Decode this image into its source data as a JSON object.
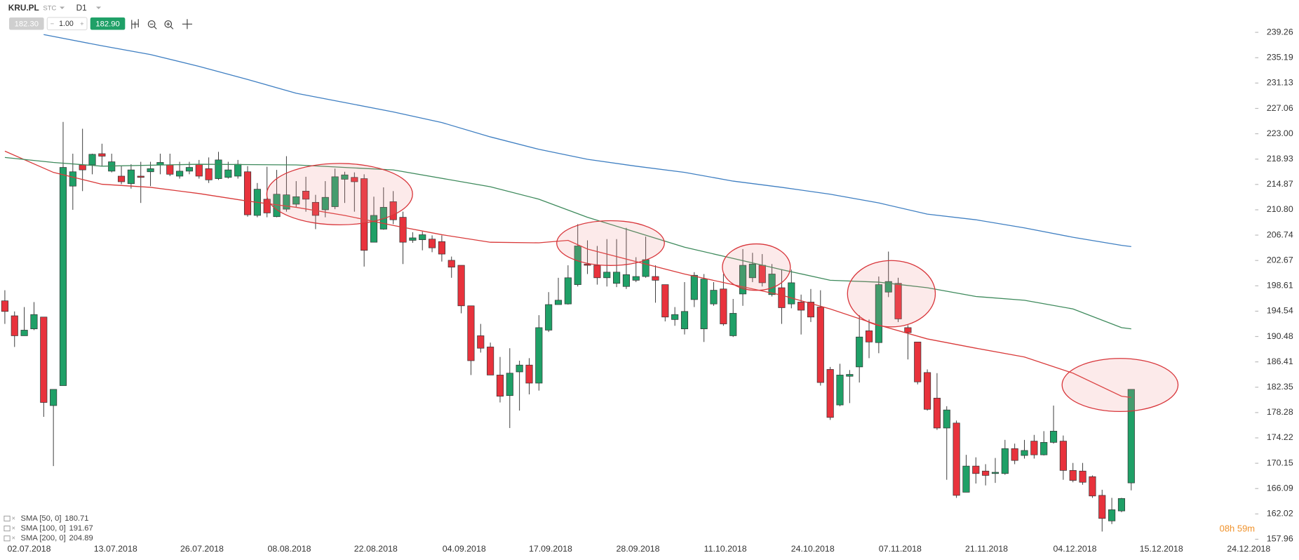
{
  "header": {
    "symbol": "KRU.PL",
    "market": "STC",
    "interval": "D1",
    "bid": "182.30",
    "quantity": "1.00",
    "ask": "182.90"
  },
  "countdown": "08h 59m",
  "chart_data": {
    "type": "candlestick",
    "xlim": [
      -0.5,
      128.5
    ],
    "xticks": [
      {
        "value": 2.5,
        "label": "02.07.2018"
      },
      {
        "value": 11.4,
        "label": "13.07.2018"
      },
      {
        "value": 20.3,
        "label": "26.07.2018"
      },
      {
        "value": 29.3,
        "label": "08.08.2018"
      },
      {
        "value": 38.2,
        "label": "22.08.2018"
      },
      {
        "value": 47.3,
        "label": "04.09.2018"
      },
      {
        "value": 56.2,
        "label": "17.09.2018"
      },
      {
        "value": 65.2,
        "label": "28.09.2018"
      },
      {
        "value": 74.2,
        "label": "11.10.2018"
      },
      {
        "value": 83.2,
        "label": "24.10.2018"
      },
      {
        "value": 92.2,
        "label": "07.11.2018"
      },
      {
        "value": 101.1,
        "label": "21.11.2018"
      },
      {
        "value": 110.2,
        "label": "04.12.2018"
      },
      {
        "value": 119.1,
        "label": "15.12.2018"
      },
      {
        "value": 128.1,
        "label": "24.12.2018"
      }
    ],
    "ylim": [
      157.96,
      239.26
    ],
    "yticks": [
      239.26,
      235.19,
      231.13,
      227.06,
      {
        "value": 223,
        "label": "223.00"
      },
      218.93,
      214.87,
      {
        "value": 210.8,
        "label": "210.80"
      },
      206.74,
      202.67,
      198.61,
      194.54,
      190.48,
      186.41,
      182.35,
      178.28,
      174.22,
      170.15,
      166.09,
      162.02,
      157.96
    ],
    "up_color": "#1fa067",
    "down_color": "#e8323c",
    "open": [
      196.2,
      193.8,
      190.6,
      191.7,
      193.6,
      179.4,
      182.6,
      214.6,
      218.0,
      218.0,
      219.8,
      217.0,
      216.2,
      215.0,
      216.2,
      216.9,
      218.0,
      218.0,
      216.2,
      217.0,
      218.1,
      217.4,
      215.8,
      216.0,
      216.2,
      216.9,
      209.9,
      212.5,
      209.7,
      210.9,
      211.7,
      213.8,
      212.0,
      210.8,
      211.3,
      215.7,
      216.0,
      215.8,
      205.6,
      207.7,
      212.1,
      209.6,
      205.9,
      206.0,
      206.1,
      205.7,
      202.7,
      201.9,
      195.4,
      190.6,
      188.8,
      184.3,
      181.0,
      184.8,
      185.9,
      183.0,
      191.5,
      195.6,
      195.7,
      198.8,
      202.1,
      201.9,
      199.9,
      199.0,
      198.5,
      199.5,
      200.1,
      200.1,
      198.8,
      193.2,
      191.7,
      196.4,
      191.7,
      195.7,
      198.1,
      190.6,
      197.3,
      199.9,
      201.9,
      197.2,
      198.3,
      195.7,
      196.0,
      196.0,
      195.2,
      185.2,
      179.5,
      184.1,
      185.6,
      191.4,
      189.5,
      197.6,
      199.0,
      191.9,
      189.6,
      184.7,
      180.6,
      175.8,
      176.6,
      165.5,
      169.7,
      168.9,
      168.5,
      168.5,
      172.5,
      171.4,
      173.7,
      171.5,
      173.5,
      173.7,
      169.0,
      168.9,
      168.0,
      165.0,
      160.9,
      162.5,
      167.0
    ],
    "high": [
      197.9,
      194.5,
      195.2,
      196.0,
      193.6,
      182.0,
      224.9,
      219.8,
      223.8,
      219.8,
      221.4,
      219.8,
      217.8,
      218.1,
      218.5,
      218.5,
      219.8,
      219.8,
      218.5,
      218.5,
      218.8,
      219.2,
      220.1,
      218.5,
      218.8,
      217.8,
      215.1,
      217.7,
      217.2,
      219.4,
      215.4,
      216.1,
      213.2,
      215.4,
      217.4,
      216.9,
      216.8,
      216.5,
      212.9,
      214.4,
      213.8,
      210.5,
      207.2,
      207.3,
      206.7,
      206.7,
      203.3,
      201.9,
      195.4,
      192.5,
      189.5,
      187.2,
      188.6,
      186.6,
      187.0,
      193.9,
      197.6,
      199.9,
      201.9,
      208.5,
      205.9,
      205.0,
      206.1,
      206.1,
      207.9,
      203.2,
      206.5,
      201.9,
      198.8,
      195.2,
      199.2,
      200.8,
      200.5,
      199.2,
      200.5,
      196.5,
      204.5,
      203.9,
      203.7,
      202.1,
      201.2,
      201.2,
      197.2,
      198.1,
      197.9,
      185.6,
      186.1,
      185.1,
      193.9,
      193.2,
      200.1,
      204.1,
      199.9,
      192.3,
      189.6,
      185.2,
      184.6,
      179.3,
      177.0,
      171.5,
      171.1,
      170.0,
      171.0,
      173.9,
      173.3,
      173.9,
      174.7,
      175.3,
      179.4,
      174.6,
      170.2,
      170.2,
      168.2,
      165.9,
      164.6,
      164.6,
      182.0
    ],
    "low": [
      192.5,
      188.8,
      190.6,
      191.5,
      177.6,
      169.7,
      182.6,
      210.8,
      213.8,
      216.5,
      217.8,
      216.8,
      214.9,
      214.2,
      211.9,
      214.6,
      216.5,
      216.2,
      215.8,
      216.5,
      215.8,
      215.1,
      215.6,
      215.8,
      215.8,
      209.7,
      209.6,
      209.6,
      209.6,
      210.5,
      211.2,
      210.5,
      207.7,
      209.6,
      210.9,
      211.9,
      210.5,
      201.7,
      205.6,
      207.6,
      208.5,
      202.1,
      205.5,
      204.3,
      204.0,
      202.5,
      199.9,
      194.2,
      184.3,
      187.9,
      184.3,
      179.9,
      175.8,
      178.6,
      181.2,
      181.8,
      191.2,
      195.6,
      195.6,
      198.5,
      200.5,
      198.8,
      198.5,
      198.4,
      198.1,
      199.2,
      199.9,
      195.9,
      192.9,
      192.2,
      190.8,
      195.2,
      189.6,
      195.4,
      192.2,
      190.4,
      195.4,
      199.2,
      198.5,
      196.9,
      192.5,
      195.0,
      190.8,
      192.8,
      182.6,
      177.1,
      179.3,
      179.8,
      183.1,
      187.0,
      187.8,
      196.8,
      192.8,
      186.8,
      182.8,
      178.6,
      175.5,
      167.5,
      164.6,
      165.5,
      166.9,
      166.6,
      167.0,
      168.3,
      170.0,
      170.9,
      170.9,
      171.4,
      173.3,
      167.5,
      167.1,
      166.7,
      164.6,
      159.2,
      160.4,
      162.3,
      165.8
    ],
    "close": [
      194.5,
      190.6,
      191.5,
      194.0,
      179.9,
      182.0,
      217.6,
      216.9,
      217.2,
      219.7,
      219.4,
      218.5,
      215.3,
      217.2,
      216.0,
      217.4,
      218.4,
      216.5,
      217.0,
      217.6,
      216.2,
      215.6,
      218.8,
      217.2,
      218.1,
      210.0,
      214.1,
      210.3,
      213.3,
      213.2,
      212.9,
      212.5,
      209.9,
      212.8,
      216.1,
      216.4,
      215.3,
      204.3,
      209.9,
      211.2,
      209.2,
      205.6,
      206.3,
      206.8,
      204.7,
      203.7,
      201.6,
      195.4,
      186.6,
      188.6,
      184.3,
      180.9,
      184.6,
      185.9,
      183.0,
      191.9,
      195.6,
      196.3,
      199.9,
      205.0,
      201.9,
      199.9,
      200.8,
      200.8,
      200.4,
      200.1,
      202.8,
      199.5,
      193.6,
      194.0,
      194.5,
      200.3,
      199.7,
      197.9,
      192.5,
      194.2,
      201.9,
      202.1,
      199.1,
      200.5,
      195.1,
      199.1,
      194.7,
      193.6,
      183.1,
      177.5,
      184.3,
      184.4,
      190.4,
      189.6,
      198.8,
      199.3,
      193.3,
      191.1,
      183.2,
      178.8,
      175.8,
      178.7,
      165.0,
      169.7,
      168.5,
      168.2,
      168.7,
      172.5,
      170.6,
      172.2,
      171.5,
      173.5,
      175.3,
      169.0,
      167.4,
      167.1,
      164.9,
      161.3,
      162.7,
      164.5,
      182.0
    ],
    "series": [
      {
        "name": "SMA [50, 0]",
        "last_value": 180.71,
        "color": "#d93a3a",
        "x": [
          0,
          5,
          10,
          15,
          20,
          25,
          30,
          35,
          40,
          45,
          50,
          55,
          58,
          60,
          65,
          70,
          75,
          80,
          85,
          90,
          95,
          100,
          105,
          110,
          115,
          116
        ],
        "values": [
          220.2,
          216.8,
          214.9,
          214.4,
          213.4,
          212.2,
          211.2,
          209.9,
          208.3,
          206.8,
          205.6,
          205.5,
          205.9,
          204.5,
          202.5,
          200.5,
          198.8,
          197.1,
          194.9,
          192.3,
          190.1,
          188.6,
          187.2,
          184.6,
          180.9,
          180.7
        ]
      },
      {
        "name": "SMA [100, 0]",
        "last_value": 191.67,
        "color": "#3e8a5c",
        "x": [
          0,
          5,
          10,
          20,
          30,
          40,
          50,
          55,
          60,
          65,
          70,
          75,
          80,
          85,
          90,
          95,
          100,
          105,
          110,
          115,
          116
        ],
        "values": [
          219.2,
          218.4,
          217.8,
          218.1,
          218.0,
          217.2,
          214.5,
          212.5,
          209.6,
          207.2,
          204.8,
          203.0,
          201.2,
          199.5,
          199.2,
          198.3,
          196.9,
          196.3,
          194.9,
          191.9,
          191.7
        ]
      },
      {
        "name": "SMA [200, 0]",
        "last_value": 204.89,
        "color": "#3f7fc2",
        "x": [
          4,
          10,
          15,
          20,
          25,
          30,
          35,
          40,
          45,
          50,
          55,
          60,
          65,
          70,
          75,
          80,
          85,
          90,
          95,
          100,
          105,
          110,
          115,
          116
        ],
        "values": [
          238.9,
          237.1,
          235.7,
          233.8,
          231.7,
          229.5,
          228.0,
          226.5,
          224.8,
          222.5,
          220.5,
          218.9,
          217.8,
          216.8,
          215.4,
          214.4,
          213.3,
          211.9,
          210.1,
          209.2,
          207.9,
          206.4,
          205.1,
          204.9
        ]
      }
    ]
  }
}
